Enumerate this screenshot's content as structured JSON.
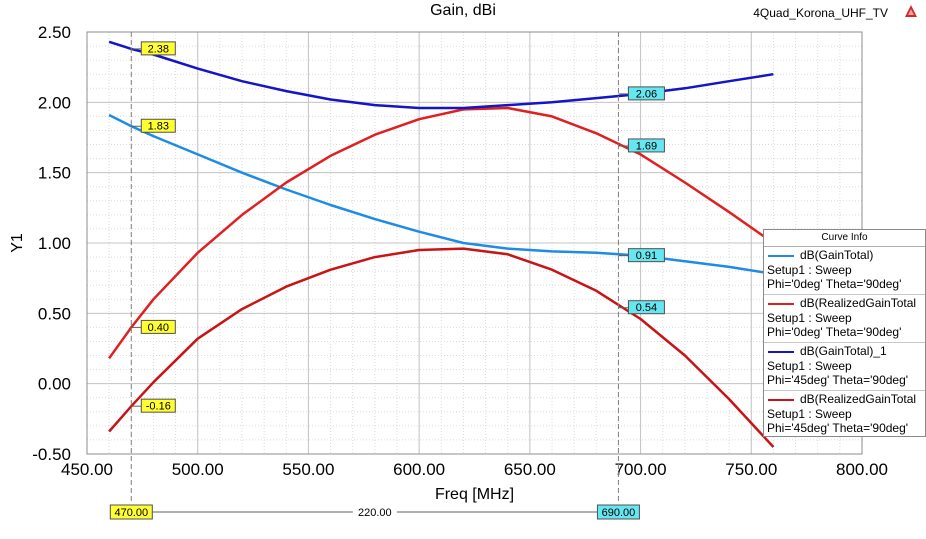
{
  "window": {
    "title": "Gain, dBi",
    "project_name": "4Quad_Korona_UHF_TV"
  },
  "legend": {
    "title": "Curve Info",
    "entries": [
      {
        "name": "dB(GainTotal)",
        "setup": "Setup1 : Sweep",
        "params": "Phi='0deg' Theta='90deg'",
        "color": "#1e8ce6"
      },
      {
        "name": "dB(RealizedGainTotal",
        "setup": "Setup1 : Sweep",
        "params": "Phi='0deg' Theta='90deg'",
        "color": "#e02020"
      },
      {
        "name": "dB(GainTotal)_1",
        "setup": "Setup1 : Sweep",
        "params": "Phi='45deg' Theta='90deg'",
        "color": "#1414c8"
      },
      {
        "name": "dB(RealizedGainTotal",
        "setup": "Setup1 : Sweep",
        "params": "Phi='45deg' Theta='90deg'",
        "color": "#c81414"
      }
    ]
  },
  "chart_data": {
    "type": "line",
    "title": "Gain, dBi",
    "xlabel": "Freq [MHz]",
    "ylabel": "Y1",
    "xlim": [
      450,
      800
    ],
    "ylim": [
      -0.5,
      2.5
    ],
    "x_ticks": [
      "450.00",
      "500.00",
      "550.00",
      "600.00",
      "650.00",
      "700.00",
      "750.00",
      "800.00"
    ],
    "y_ticks": [
      "-0.50",
      "0.00",
      "0.50",
      "1.00",
      "1.50",
      "2.00",
      "2.50"
    ],
    "grid": true,
    "legend_position": "right",
    "series": [
      {
        "name": "dB(GainTotal)",
        "color": "#1e8ce6",
        "x": [
          460,
          470,
          480,
          500,
          520,
          540,
          560,
          580,
          600,
          620,
          640,
          660,
          680,
          700,
          720,
          740,
          760
        ],
        "y": [
          1.91,
          1.83,
          1.76,
          1.63,
          1.5,
          1.38,
          1.27,
          1.17,
          1.08,
          1.0,
          0.96,
          0.94,
          0.93,
          0.91,
          0.87,
          0.83,
          0.78
        ]
      },
      {
        "name": "dB(RealizedGainTotal",
        "color": "#e02020",
        "x": [
          460,
          470,
          480,
          500,
          520,
          540,
          560,
          580,
          600,
          620,
          640,
          660,
          680,
          700,
          720,
          740,
          760
        ],
        "y": [
          0.18,
          0.4,
          0.6,
          0.93,
          1.2,
          1.43,
          1.62,
          1.77,
          1.88,
          1.95,
          1.96,
          1.9,
          1.78,
          1.63,
          1.43,
          1.22,
          1.0
        ]
      },
      {
        "name": "dB(GainTotal)_1",
        "color": "#1414c8",
        "x": [
          460,
          470,
          480,
          500,
          520,
          540,
          560,
          580,
          600,
          620,
          640,
          660,
          680,
          700,
          720,
          740,
          760
        ],
        "y": [
          2.43,
          2.38,
          2.34,
          2.24,
          2.15,
          2.08,
          2.02,
          1.98,
          1.96,
          1.96,
          1.98,
          2.0,
          2.03,
          2.06,
          2.1,
          2.15,
          2.2
        ]
      },
      {
        "name": "dB(RealizedGainTotal",
        "color": "#c81414",
        "x": [
          460,
          470,
          480,
          500,
          520,
          540,
          560,
          580,
          600,
          620,
          640,
          660,
          680,
          700,
          720,
          740,
          760
        ],
        "y": [
          -0.34,
          -0.16,
          0.01,
          0.32,
          0.53,
          0.69,
          0.81,
          0.9,
          0.95,
          0.96,
          0.92,
          0.81,
          0.66,
          0.46,
          0.2,
          -0.11,
          -0.45
        ]
      }
    ],
    "markers": [
      {
        "x": 470,
        "x_label": "470.00",
        "labels": [
          {
            "series": 2,
            "value": 2.38,
            "text": "2.38"
          },
          {
            "series": 0,
            "value": 1.83,
            "text": "1.83"
          },
          {
            "series": 1,
            "value": 0.4,
            "text": "0.40"
          },
          {
            "series": 3,
            "value": -0.16,
            "text": "-0.16"
          }
        ]
      },
      {
        "x": 690,
        "x_label": "690.00",
        "labels": [
          {
            "series": 2,
            "value": 2.06,
            "text": "2.06"
          },
          {
            "series": 1,
            "value": 1.69,
            "text": "1.69"
          },
          {
            "series": 0,
            "value": 0.91,
            "text": "0.91"
          },
          {
            "series": 3,
            "value": 0.54,
            "text": "0.54"
          }
        ]
      }
    ],
    "delta_label": "220.00"
  }
}
